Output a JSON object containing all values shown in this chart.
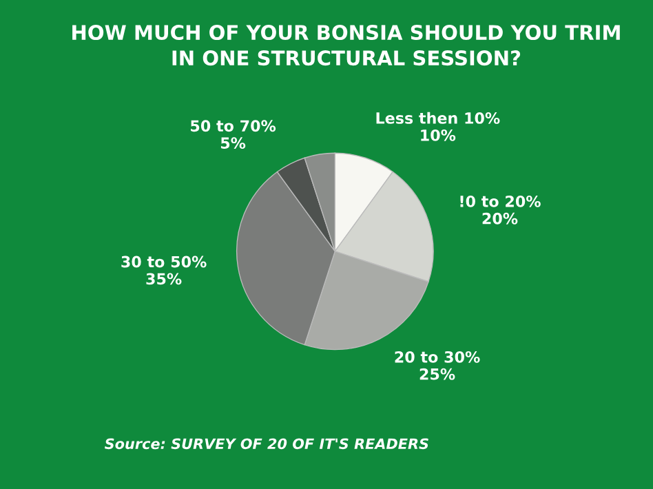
{
  "chart_data": {
    "type": "pie",
    "title": "HOW MUCH OF YOUR BONSIA SHOULD YOU TRIM\nIN ONE STRUCTURAL SESSION?",
    "categories": [
      "Less then 10%",
      "!0 to 20%",
      "20 to 30%",
      "30 to 50%",
      "50 to 70%",
      null
    ],
    "values": [
      10,
      20,
      25,
      35,
      5,
      5
    ],
    "value_labels": [
      "10%",
      "20%",
      "25%",
      "35%",
      "5%",
      null
    ],
    "colors": [
      "#f7f7f2",
      "#d4d6d0",
      "#a9aba7",
      "#7a7c7a",
      "#4e524f",
      "#8a8d8a"
    ],
    "annotations": [
      "Source: SURVEY OF 20 OF IT'S READERS"
    ]
  }
}
